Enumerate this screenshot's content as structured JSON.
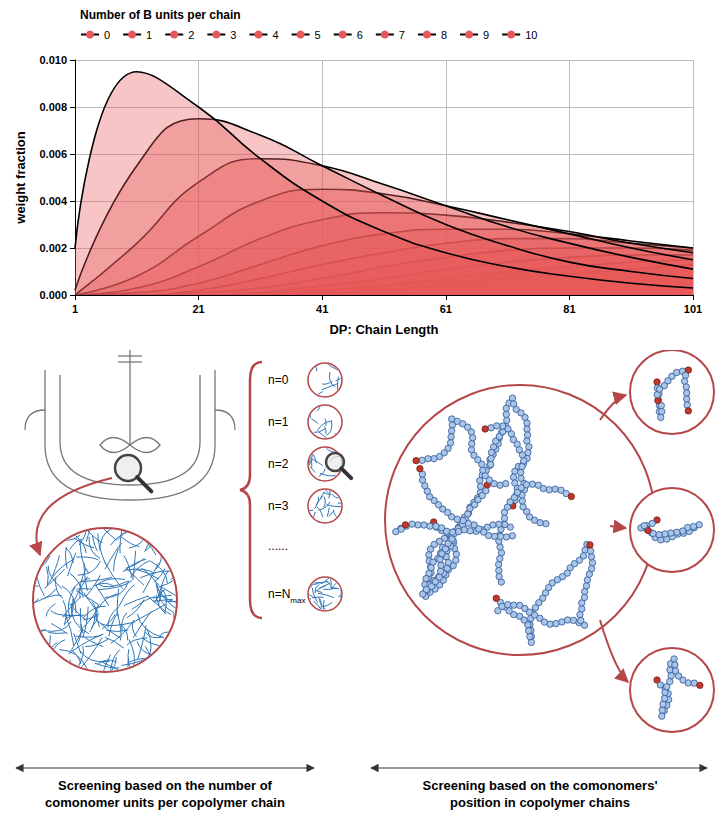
{
  "chart_data": {
    "type": "line",
    "xlabel": "DP: Chain Length",
    "ylabel": "weight fraction",
    "legend_title": "Number of B units per chain",
    "legend": "top",
    "x": [
      1,
      11,
      21,
      31,
      41,
      51,
      61,
      71,
      81,
      91,
      101
    ],
    "xlim": [
      1,
      101
    ],
    "xticks": [
      1,
      21,
      41,
      61,
      81,
      101
    ],
    "ylim": [
      0,
      0.01
    ],
    "yticks": [
      {
        "value": 0,
        "label": "0.000"
      },
      {
        "value": 0.002,
        "label": "0.002"
      },
      {
        "value": 0.004,
        "label": "0.004"
      },
      {
        "value": 0.006,
        "label": "0.006"
      },
      {
        "value": 0.008,
        "label": "0.008"
      },
      {
        "value": 0.01,
        "label": "0.010"
      }
    ],
    "grid": true,
    "series": [
      {
        "name": "0",
        "color": "#e8585a",
        "values": [
          0.002,
          0.0095,
          0.008,
          0.0058,
          0.004,
          0.0027,
          0.0018,
          0.0012,
          0.0008,
          0.0005,
          0.0003
        ]
      },
      {
        "name": "1",
        "color": "#e8585a",
        "values": [
          0.0002,
          0.0055,
          0.0075,
          0.0068,
          0.0055,
          0.0042,
          0.003,
          0.0021,
          0.0014,
          0.001,
          0.0007
        ]
      },
      {
        "name": "2",
        "color": "#e8585a",
        "values": [
          0,
          0.0022,
          0.0048,
          0.0058,
          0.0055,
          0.0047,
          0.0038,
          0.0029,
          0.0022,
          0.0016,
          0.0011
        ]
      },
      {
        "name": "3",
        "color": "#e8585a",
        "values": [
          0,
          0.0008,
          0.0025,
          0.004,
          0.0045,
          0.0043,
          0.0038,
          0.0032,
          0.0026,
          0.002,
          0.0015
        ]
      },
      {
        "name": "4",
        "color": "#e8585a",
        "values": [
          0,
          0.0003,
          0.0012,
          0.0024,
          0.0032,
          0.0035,
          0.0034,
          0.0031,
          0.0027,
          0.0022,
          0.0018
        ]
      },
      {
        "name": "5",
        "color": "#e8585a",
        "values": [
          0,
          0.0001,
          0.0005,
          0.0013,
          0.0021,
          0.0026,
          0.0028,
          0.0028,
          0.0026,
          0.0023,
          0.002
        ]
      },
      {
        "name": "6",
        "color": "#e8585a",
        "values": [
          0,
          0,
          0.0002,
          0.0007,
          0.0013,
          0.0018,
          0.0022,
          0.0024,
          0.0024,
          0.0022,
          0.002
        ]
      },
      {
        "name": "7",
        "color": "#e8585a",
        "values": [
          0,
          0,
          0.0001,
          0.0003,
          0.0007,
          0.0012,
          0.0016,
          0.0019,
          0.002,
          0.002,
          0.0019
        ]
      },
      {
        "name": "8",
        "color": "#e8585a",
        "values": [
          0,
          0,
          0,
          0.0001,
          0.0004,
          0.0007,
          0.0011,
          0.0014,
          0.0016,
          0.0017,
          0.0017
        ]
      },
      {
        "name": "9",
        "color": "#e8585a",
        "values": [
          0,
          0,
          0,
          0.0001,
          0.0002,
          0.0004,
          0.0007,
          0.001,
          0.0012,
          0.0014,
          0.0015
        ]
      },
      {
        "name": "10",
        "color": "#e8585a",
        "values": [
          0,
          0,
          0,
          0,
          0.0001,
          0.0002,
          0.0004,
          0.0007,
          0.0009,
          0.0011,
          0.0013
        ]
      }
    ]
  },
  "diagram": {
    "groups": [
      {
        "text": "n=0"
      },
      {
        "text": "n=1"
      },
      {
        "text": "n=2"
      },
      {
        "text": "n=3"
      },
      {
        "text": "......"
      },
      {
        "text": "n=N",
        "subscript": "max"
      }
    ],
    "captions": [
      "Screening based on the number of comonomer units per copolymer chain",
      "Screening based on the comonomers' position in copolymer chains"
    ]
  }
}
